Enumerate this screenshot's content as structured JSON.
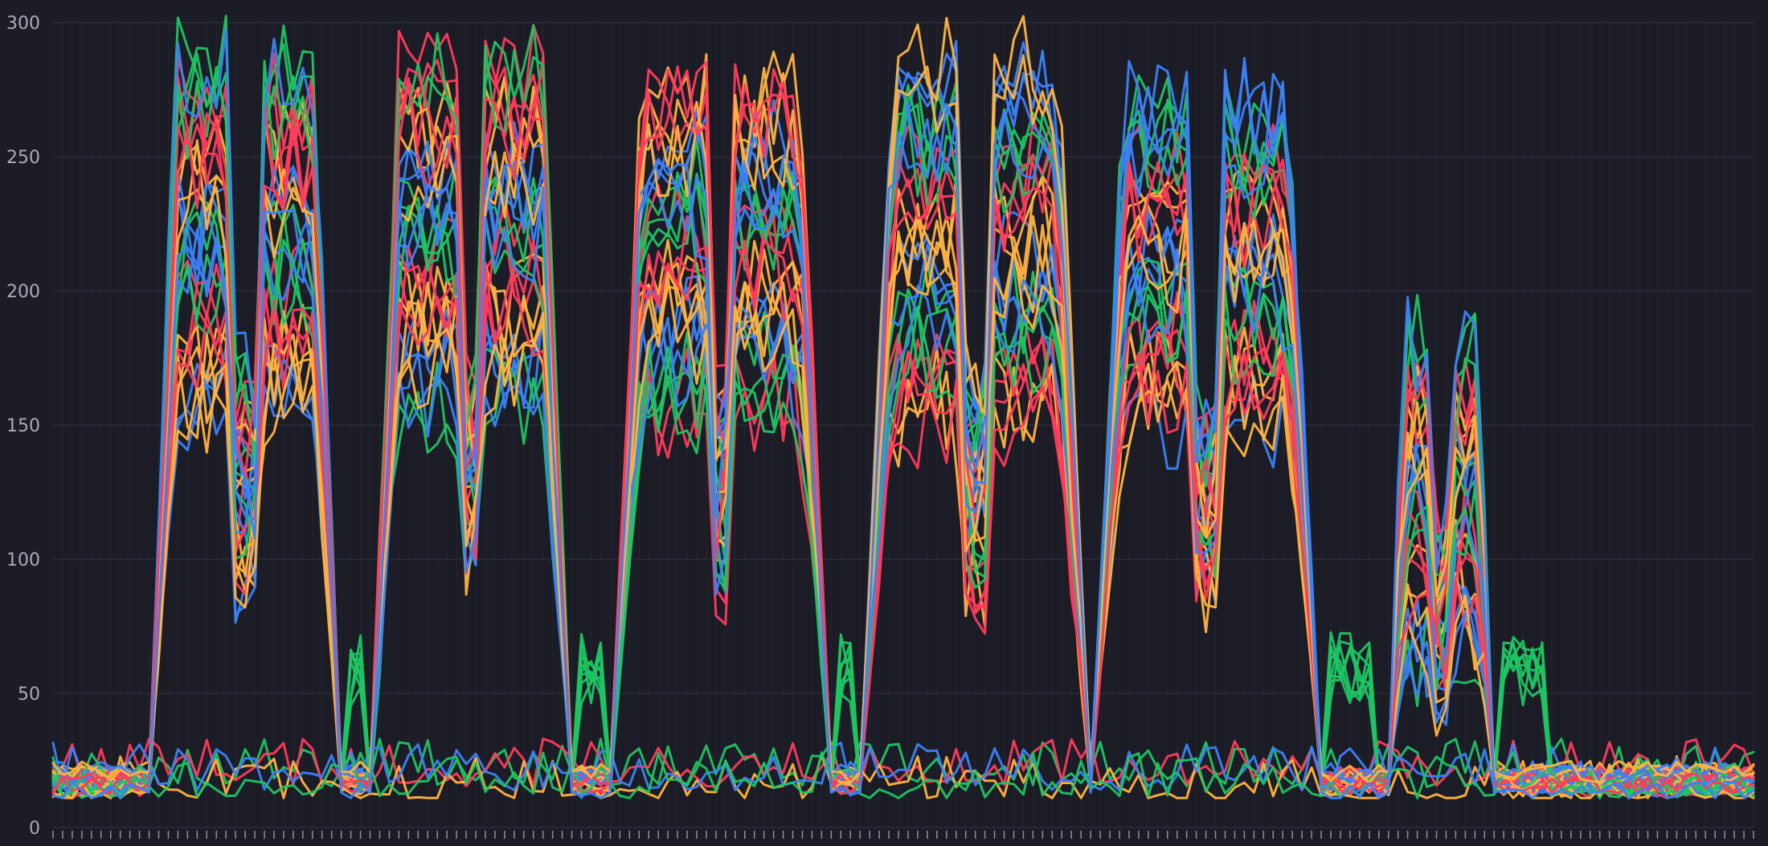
{
  "chart_data": {
    "type": "line",
    "title": "",
    "xlabel": "",
    "ylabel": "",
    "ylim": [
      0,
      300
    ],
    "yticks": [
      0,
      50,
      100,
      150,
      200,
      250,
      300
    ],
    "ytick_labels": [
      "0",
      "50",
      "100",
      "150",
      "200",
      "250",
      "300"
    ],
    "x_count": 178,
    "x_tick_labels_visible": false,
    "grid": true,
    "legend": "none",
    "background": "#1b1c26",
    "grid_color": "#2a2c38",
    "palette": [
      "#1fc463",
      "#ff3b5c",
      "#ffb340",
      "#3b82f6"
    ],
    "series_count": 40,
    "series_description_points": [
      {
        "label": "baseline",
        "approx_value": 15
      },
      {
        "label": "burst peaks",
        "approx_value": 300
      }
    ]
  }
}
